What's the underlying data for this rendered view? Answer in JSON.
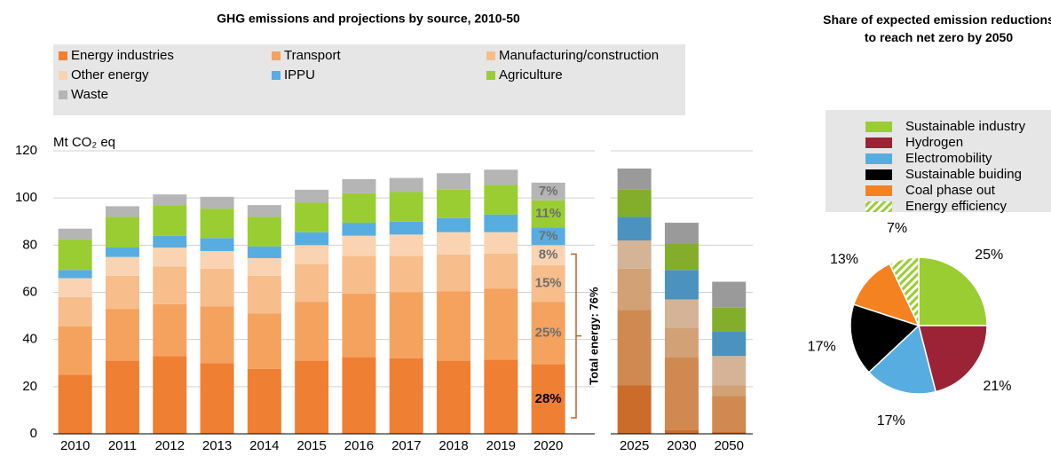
{
  "chart_data": [
    {
      "type": "bar",
      "stacked": true,
      "title": "GHG emissions and projections by source, 2010-50",
      "ylabel": "Mt CO₂ eq",
      "categories": [
        "2010",
        "2011",
        "2012",
        "2013",
        "2014",
        "2015",
        "2016",
        "2017",
        "2018",
        "2019",
        "2020"
      ],
      "series": [
        {
          "name": "Energy industries",
          "color": "#ef7f33",
          "values": [
            25,
            31,
            33,
            30,
            27.5,
            31,
            32.5,
            32,
            31,
            31.5,
            29.5
          ]
        },
        {
          "name": "Transport",
          "color": "#f5a25f",
          "values": [
            20.5,
            22,
            22,
            24,
            23.5,
            25,
            27,
            28,
            29.5,
            30,
            26.5
          ]
        },
        {
          "name": "Manufacturing/construction",
          "color": "#f7bd8b",
          "values": [
            12.5,
            14,
            16,
            16,
            16,
            16,
            16,
            15.5,
            15.5,
            15,
            15.5
          ]
        },
        {
          "name": "Other energy",
          "color": "#fad3b2",
          "values": [
            8,
            8,
            8,
            7.5,
            7.5,
            8,
            8.5,
            9,
            9.5,
            9,
            8.5
          ]
        },
        {
          "name": "IPPU",
          "color": "#58ade0",
          "values": [
            3.5,
            4,
            5,
            5.5,
            5,
            5.5,
            5.5,
            5.5,
            6,
            7.5,
            7.5
          ]
        },
        {
          "name": "Agriculture",
          "color": "#9acd32",
          "values": [
            13,
            13,
            13,
            12.5,
            12.5,
            12.5,
            12.5,
            12.5,
            12,
            12.5,
            11.5
          ]
        },
        {
          "name": "Waste",
          "color": "#b5b5b5",
          "values": [
            4.5,
            4.5,
            4.5,
            5,
            5,
            5.5,
            6,
            6,
            7,
            6.5,
            7.5
          ]
        }
      ],
      "ylim": [
        0,
        120
      ],
      "yticks": [
        0,
        20,
        40,
        60,
        80,
        100,
        120
      ],
      "grid": true,
      "annotations": [
        "28%",
        "25%",
        "15%",
        "8%",
        "7%",
        "11%",
        "7%"
      ],
      "bracket_label": "Total energy: 76%"
    },
    {
      "type": "bar",
      "stacked": true,
      "categories": [
        "2025",
        "2030",
        "2050"
      ],
      "series": [
        {
          "values": [
            20.5,
            1.5,
            1
          ]
        },
        {
          "values": [
            32,
            31,
            15
          ]
        },
        {
          "values": [
            17.5,
            12.5,
            4.5
          ]
        },
        {
          "values": [
            12,
            12,
            12.5
          ]
        },
        {
          "values": [
            10,
            12.5,
            10.5
          ]
        },
        {
          "values": [
            11.5,
            11,
            10
          ]
        },
        {
          "values": [
            9,
            9,
            11
          ]
        }
      ],
      "ylim": [
        0,
        120
      ]
    },
    {
      "type": "pie",
      "title": "Share of expected emission reductions to reach net zero by 2050",
      "categories": [
        "Sustainable industry",
        "Hydrogen",
        "Electromobility",
        "Sustainable buiding",
        "Coal phase out",
        "Energy efficiency"
      ],
      "values": [
        25,
        21,
        17,
        17,
        13,
        7
      ],
      "value_labels": [
        "25%",
        "21%",
        "17%",
        "17%",
        "13%",
        "7%"
      ],
      "colors": [
        "#9acd32",
        "#9b2335",
        "#58ade0",
        "#000000",
        "#f58220",
        "#9acd32"
      ],
      "hatched": [
        false,
        false,
        false,
        false,
        false,
        true
      ]
    }
  ]
}
